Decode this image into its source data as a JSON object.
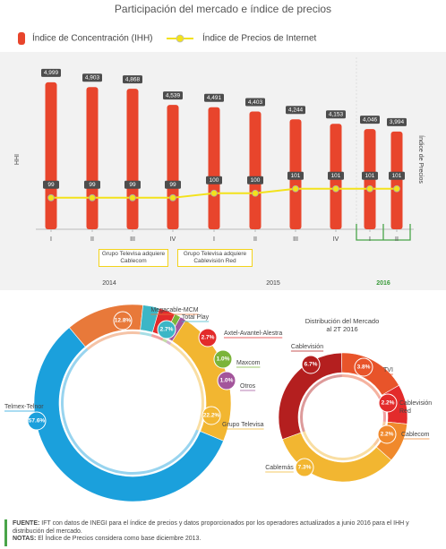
{
  "chart_data": [
    {
      "type": "bar",
      "title": "Participación del mercado e índice de precios",
      "categories": [
        "I",
        "II",
        "III",
        "IV",
        "I",
        "II",
        "III",
        "IV",
        "I",
        "II"
      ],
      "groups": [
        "2014",
        "2015",
        "2016"
      ],
      "annotations": [
        "Grupo Televisa adquiere Cablecom",
        "Grupo Televisa adquiere Cablevisión Red"
      ],
      "ylabel": "IHH",
      "y2label": "Índice de Precios",
      "ylim": [
        2000,
        5400
      ],
      "y2lim": [
        92,
        129
      ],
      "series": [
        {
          "name": "Índice de Concentración (IHH)",
          "color": "#e8452c",
          "values": [
            4999,
            4903,
            4868,
            4539,
            4491,
            4403,
            4244,
            4153,
            4046,
            3994
          ],
          "value_labels": [
            "4,999",
            "4,903",
            "4,868",
            "4,539",
            "4,491",
            "4,403",
            "4,244",
            "4,153",
            "4,046",
            "3,994"
          ]
        },
        {
          "name": "Índice de Precios de Internet",
          "type": "line",
          "axis": "y2",
          "color": "#f3e21b",
          "values": [
            99,
            99,
            99,
            99,
            100,
            100,
            101,
            101,
            101,
            101
          ]
        }
      ]
    },
    {
      "type": "pie",
      "categories": [
        "Megacable-MCM",
        "Total Play",
        "Axtel-Avantel-Alestra",
        "Maxcom",
        "Otros",
        "Grupo Televisa",
        "Telmex-Telnor"
      ],
      "values": [
        12.8,
        2.7,
        2.7,
        1.0,
        1.0,
        22.2,
        57.6
      ],
      "value_labels": [
        "12.8%",
        "2.7%",
        "2.7%",
        "1.0%",
        "1.0%",
        "22.2%",
        "57.6%"
      ],
      "colors": [
        "#e8793a",
        "#3cb6c6",
        "#e32b2b",
        "#7bb43a",
        "#a3559b",
        "#f2b631",
        "#1ba0dc"
      ]
    },
    {
      "type": "pie",
      "title": "Distribución del Mercado al 2T 2016",
      "categories": [
        "Cablevisión",
        "TVI",
        "Cablevisión Red",
        "Cablecom",
        "Cablemás"
      ],
      "values": [
        6.7,
        3.8,
        2.2,
        2.2,
        7.3
      ],
      "value_labels": [
        "6.7%",
        "3.8%",
        "2.2%",
        "2.2%",
        "7.3%"
      ],
      "colors": [
        "#b41f1f",
        "#e8542a",
        "#e32b2b",
        "#f0892c",
        "#f2b631"
      ]
    }
  ],
  "footer": {
    "source_label": "FUENTE:",
    "source": "IFT con datos de INEGI para el índice de precios y datos proporcionados por los operadores actualizados a junio 2016 para el IHH y distribución del mercado.",
    "notes_label": "NOTAS:",
    "notes": "El Índice de Precios considera como base diciembre 2013."
  }
}
